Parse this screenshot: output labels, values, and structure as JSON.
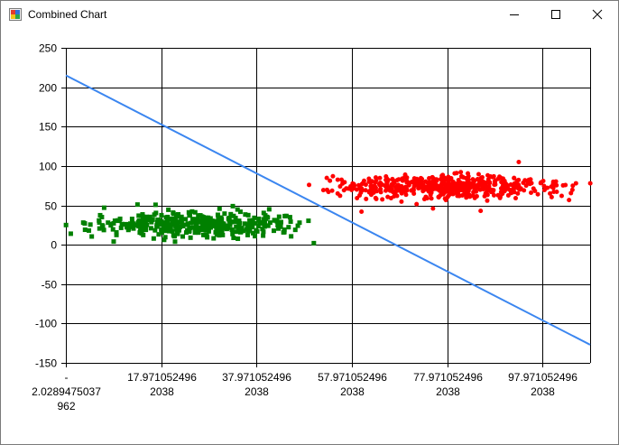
{
  "window": {
    "title": "Combined Chart",
    "minimize_label": "Minimize",
    "maximize_label": "Maximize",
    "close_label": "Close"
  },
  "chart_data": {
    "type": "scatter",
    "title": "",
    "xlabel": "",
    "ylabel": "",
    "xlim": [
      -2.0289475037962,
      107.9710524962038
    ],
    "ylim": [
      -150,
      250
    ],
    "grid": true,
    "legend": "none",
    "y_ticks": [
      250,
      200,
      150,
      100,
      50,
      0,
      -50,
      -100,
      -150
    ],
    "x_ticks": [
      {
        "value": -2.0289475037962,
        "label": "-\n2.0289475037\n962"
      },
      {
        "value": 17.9710524962038,
        "label": "17.971052496\n2038"
      },
      {
        "value": 37.9710524962038,
        "label": "37.971052496\n2038"
      },
      {
        "value": 57.9710524962038,
        "label": "57.971052496\n2038"
      },
      {
        "value": 77.9710524962038,
        "label": "77.971052496\n2038"
      },
      {
        "value": 97.9710524962038,
        "label": "97.971052496\n2038"
      }
    ],
    "series": [
      {
        "kind": "scatter",
        "marker": "square",
        "color": "#008000",
        "x_range": [
          -2,
          52
        ],
        "y_center": 25,
        "y_spread": 14,
        "count": 380,
        "points": [
          [
            -2,
            25
          ],
          [
            -1,
            14
          ],
          [
            2,
            19
          ],
          [
            6,
            47
          ],
          [
            8,
            4
          ],
          [
            50,
            2
          ],
          [
            13,
            51
          ],
          [
            33,
            49
          ],
          [
            45,
            35
          ],
          [
            47,
            28
          ]
        ]
      },
      {
        "kind": "scatter",
        "marker": "circle",
        "color": "#ff0000",
        "x_range": [
          49,
          108
        ],
        "y_center": 74,
        "y_spread": 12,
        "count": 520,
        "points": [
          [
            49,
            76
          ],
          [
            54,
            87
          ],
          [
            55,
            65
          ],
          [
            60,
            42
          ],
          [
            75,
            46
          ],
          [
            82,
            62
          ],
          [
            85,
            43
          ],
          [
            93,
            105
          ],
          [
            97,
            64
          ],
          [
            105,
            78
          ],
          [
            108,
            78
          ],
          [
            102,
            62
          ]
        ]
      },
      {
        "kind": "line",
        "color": "#3b86f0",
        "points": [
          [
            -2.0289475037962,
            215
          ],
          [
            107.9710524962038,
            -127
          ]
        ]
      }
    ]
  }
}
